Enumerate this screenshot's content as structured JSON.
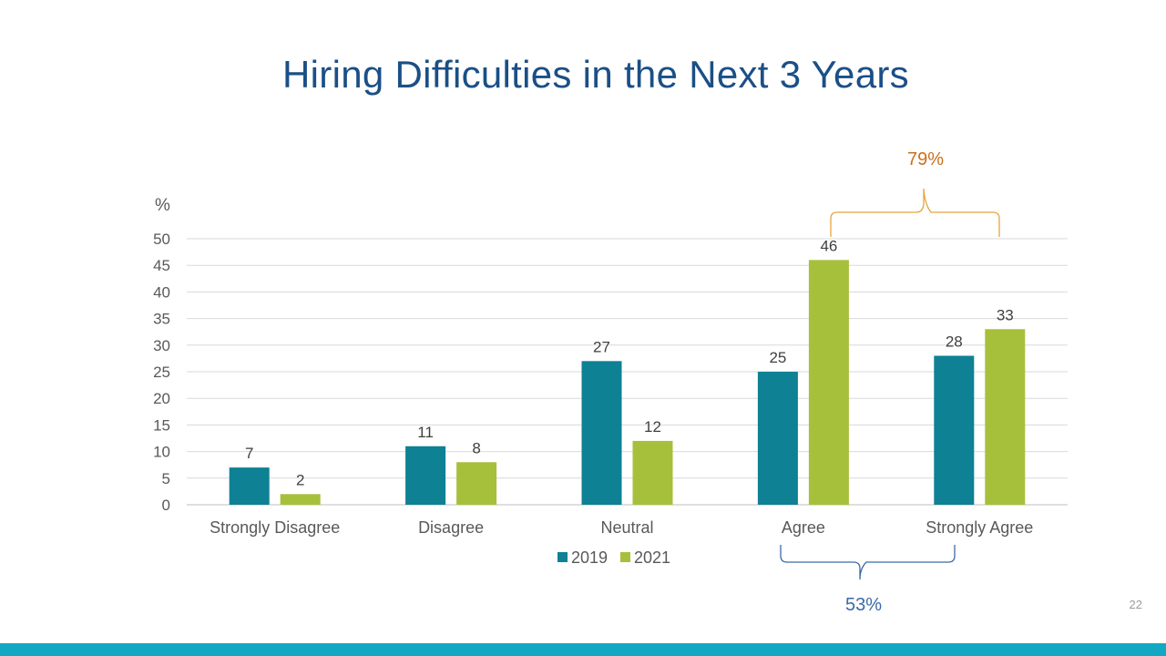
{
  "slide": {
    "title": "Hiring Difficulties in the Next 3 Years",
    "page_number": "22",
    "band_color": "#12a7c2"
  },
  "chart_data": {
    "type": "bar",
    "title": "",
    "ylabel": "%",
    "xlabel": "",
    "categories": [
      "Strongly Disagree",
      "Disagree",
      "Neutral",
      "Agree",
      "Strongly Agree"
    ],
    "series": [
      {
        "name": "2019",
        "color": "#0e8194",
        "values": [
          7,
          11,
          27,
          25,
          28
        ]
      },
      {
        "name": "2021",
        "color": "#a6c03c",
        "values": [
          2,
          8,
          12,
          46,
          33
        ]
      }
    ],
    "ylim": [
      0,
      50
    ],
    "yticks": [
      0,
      5,
      10,
      15,
      20,
      25,
      30,
      35,
      40,
      45,
      50
    ],
    "grid": true,
    "legend": "bottom-center",
    "annotations": [
      {
        "text": "79%",
        "color": "#c9701c",
        "bracket_color": "#e8a53a",
        "spans": "Agree + Strongly Agree (2021)",
        "position": "top"
      },
      {
        "text": "53%",
        "color": "#3b6aa6",
        "bracket_color": "#3b6aa6",
        "spans": "Agree + Strongly Agree (2019)",
        "position": "bottom"
      }
    ]
  }
}
